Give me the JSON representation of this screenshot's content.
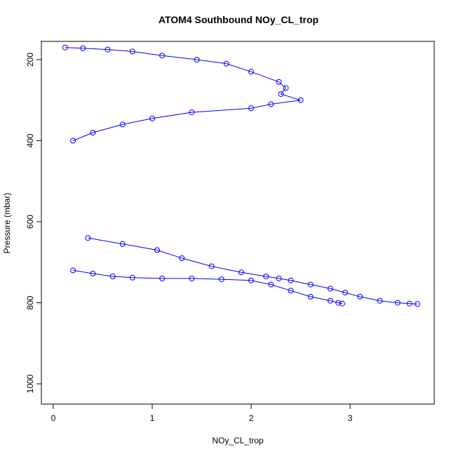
{
  "chart_data": {
    "type": "scatter",
    "title": "ATOM4 Southbound NOy_CL_trop",
    "xlabel": "NOy_CL_trop",
    "ylabel": "Pressure (mbar)",
    "xlim": [
      -0.12,
      3.85
    ],
    "ylim": [
      1050,
      155
    ],
    "y_reversed": true,
    "x_ticks": [
      0,
      1,
      2,
      3
    ],
    "y_ticks": [
      200,
      400,
      600,
      800,
      1000
    ],
    "series_color": "#0000ff",
    "marker": "open-circle",
    "connected": true,
    "grid": false,
    "legend": "none",
    "series": [
      {
        "x": [
          0.12,
          0.3,
          0.55,
          0.8,
          1.1,
          1.45,
          1.75,
          2.0,
          2.28,
          2.35,
          2.3,
          2.5,
          2.2,
          2.0,
          1.4,
          1.0,
          0.7,
          0.4,
          0.2
        ],
        "y": [
          170,
          172,
          175,
          180,
          190,
          200,
          210,
          230,
          255,
          270,
          285,
          300,
          310,
          320,
          330,
          345,
          360,
          380,
          400
        ]
      },
      {
        "x": [
          0.35,
          0.7,
          1.05,
          1.3,
          1.6,
          1.9,
          2.15,
          2.28,
          2.4,
          2.6,
          2.8,
          2.95,
          3.1,
          3.3,
          3.48,
          3.6,
          3.68
        ],
        "y": [
          640,
          655,
          670,
          690,
          710,
          725,
          735,
          740,
          745,
          755,
          765,
          775,
          785,
          795,
          800,
          802,
          803
        ]
      },
      {
        "x": [
          0.2,
          0.4,
          0.6,
          0.8,
          1.1,
          1.4,
          1.7,
          2.0,
          2.2,
          2.4,
          2.6,
          2.8,
          2.88,
          2.92
        ],
        "y": [
          720,
          728,
          735,
          738,
          740,
          740,
          742,
          745,
          755,
          770,
          785,
          795,
          800,
          802
        ]
      }
    ]
  }
}
